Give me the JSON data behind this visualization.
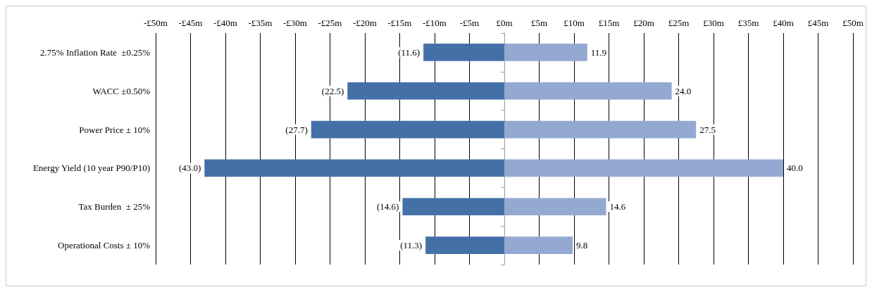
{
  "chart_data": {
    "type": "bar",
    "orientation": "horizontal",
    "stacked": true,
    "categories": [
      "2.75% Inflation Rate  ±0.25%",
      "WACC ±0.50%",
      "Power Price ± 10%",
      "Energy Yield (10 year P90/P10)",
      "Tax Burden  ± 25%",
      "Operational Costs ± 10%"
    ],
    "series": [
      {
        "color": "#4470a8",
        "values": [
          -11.6,
          -22.5,
          -27.7,
          -43.0,
          -14.6,
          -11.3
        ],
        "value_labels": [
          "(11.6)",
          "(22.5)",
          "(27.7)",
          "(43.0)",
          "(14.6)",
          "(11.3)"
        ]
      },
      {
        "color": "#93a9d2",
        "values": [
          11.9,
          24.0,
          27.5,
          40.0,
          14.6,
          9.8
        ],
        "value_labels": [
          "11.9",
          "24.0",
          "27.5",
          "40.0",
          "14.6",
          "9.8"
        ]
      }
    ],
    "xlim": [
      -50,
      50
    ],
    "xticks": [
      {
        "value": -50,
        "label": "-£50m"
      },
      {
        "value": -45,
        "label": "-£45m"
      },
      {
        "value": -40,
        "label": "-£40m"
      },
      {
        "value": -35,
        "label": "-£35m"
      },
      {
        "value": -30,
        "label": "-£30m"
      },
      {
        "value": -25,
        "label": "-£25m"
      },
      {
        "value": -20,
        "label": "-£20m"
      },
      {
        "value": -15,
        "label": "-£15m"
      },
      {
        "value": -10,
        "label": "-£10m"
      },
      {
        "value": -5,
        "label": "-£5m"
      },
      {
        "value": 0,
        "label": "£0m"
      },
      {
        "value": 5,
        "label": "£5m"
      },
      {
        "value": 10,
        "label": "£10m"
      },
      {
        "value": 15,
        "label": "£15m"
      },
      {
        "value": 20,
        "label": "£20m"
      },
      {
        "value": 25,
        "label": "£25m"
      },
      {
        "value": 30,
        "label": "£30m"
      },
      {
        "value": 35,
        "label": "£35m"
      },
      {
        "value": 40,
        "label": "£40m"
      },
      {
        "value": 45,
        "label": "£45m"
      },
      {
        "value": 50,
        "label": "£50m"
      }
    ],
    "grid": "x"
  }
}
